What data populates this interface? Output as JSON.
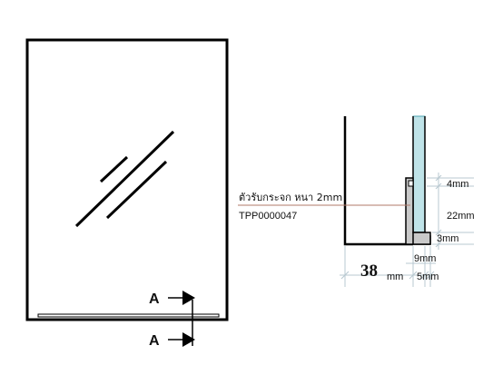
{
  "front_view": {
    "section_mark_top": "A",
    "section_mark_bottom": "A"
  },
  "section_view": {
    "part_name": "ตัวรับกระจก หนา 2mm",
    "part_code": "TPP0000047",
    "dim_4": "4mm",
    "dim_22": "22mm",
    "dim_3": "3mm",
    "dim_9": "9mm",
    "dim_5": "5mm",
    "dim_38_value": "38",
    "dim_38_unit": "mm"
  },
  "colors": {
    "glass": "#bfe3e8",
    "glass_edge": "#4aa3b0",
    "profile": "#c9c9c9",
    "leader": "#b07a6a",
    "dim_line": "#b8c8d0",
    "outline": "#000000"
  }
}
